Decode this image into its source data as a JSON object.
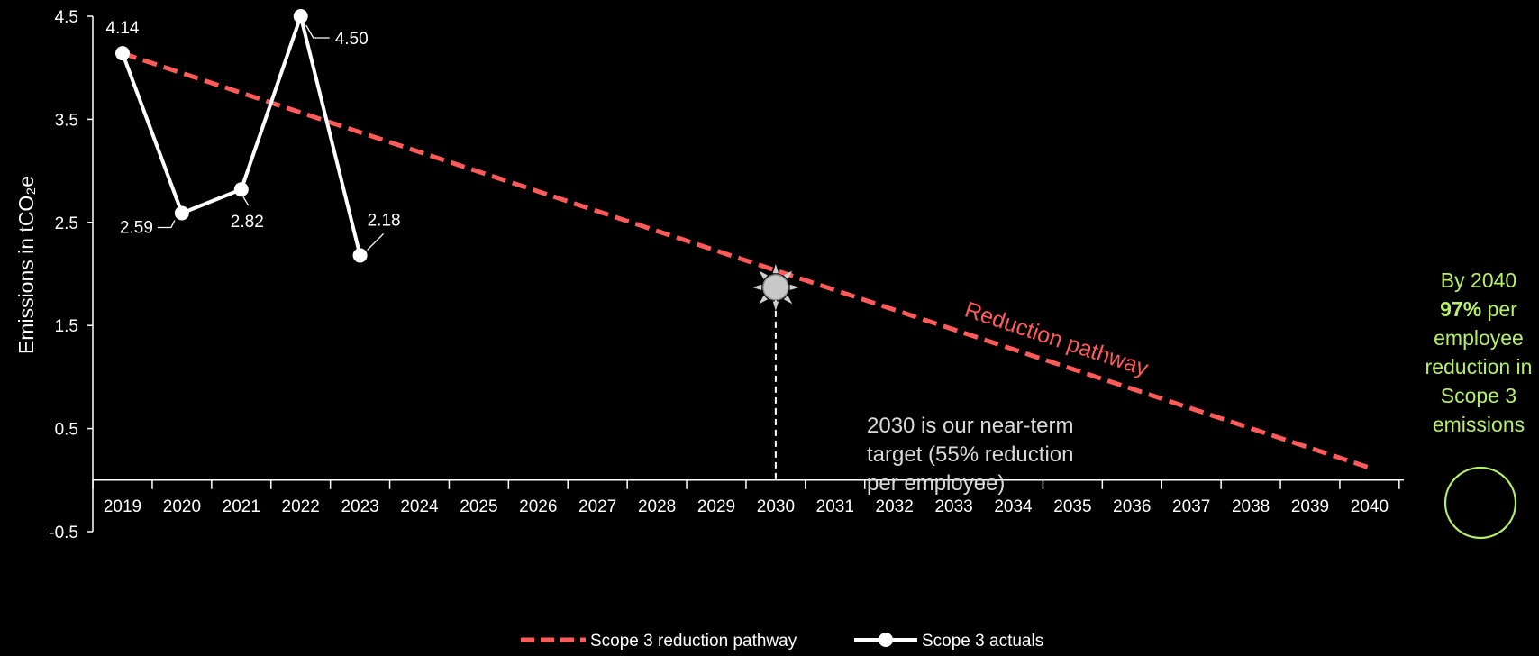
{
  "chart_data": {
    "type": "line",
    "ylabel": "Emissions in tCO₂e",
    "ylim": [
      -0.5,
      4.5
    ],
    "yticks": [
      "4.5",
      "3.5",
      "2.5",
      "1.5",
      "0.5",
      "-0.5"
    ],
    "categories": [
      "2019",
      "2020",
      "2021",
      "2022",
      "2023",
      "2024",
      "2025",
      "2026",
      "2027",
      "2028",
      "2029",
      "2030",
      "2031",
      "2032",
      "2033",
      "2034",
      "2035",
      "2036",
      "2037",
      "2038",
      "2039",
      "2040"
    ],
    "series": [
      {
        "name": "Scope 3 reduction pathway",
        "style": "dashed",
        "color": "#ff5a5a",
        "x": [
          "2019",
          "2040"
        ],
        "values": [
          4.14,
          0.12
        ]
      },
      {
        "name": "Scope 3 actuals",
        "style": "solid-markers",
        "color": "#ffffff",
        "x": [
          "2019",
          "2020",
          "2021",
          "2022",
          "2023"
        ],
        "values": [
          4.14,
          2.59,
          2.82,
          4.5,
          2.18
        ],
        "labels": [
          "4.14",
          "2.59",
          "2.82",
          "4.50",
          "2.18"
        ]
      }
    ],
    "annotations": {
      "pathway_label": "Reduction pathway",
      "target_marker": {
        "year": "2030",
        "value": 1.87
      },
      "target_note": [
        "2030 is our near-term",
        "target (55% reduction",
        "per employee)"
      ],
      "callout_2040": {
        "line1": "By 2040",
        "bold": "97%",
        "line2_rest": " per",
        "line3": "employee",
        "line4": "reduction in",
        "line5": "Scope 3",
        "line6": "emissions",
        "color": "#b6ee6a"
      }
    },
    "legend": {
      "position": "bottom-center"
    },
    "grid": false
  }
}
